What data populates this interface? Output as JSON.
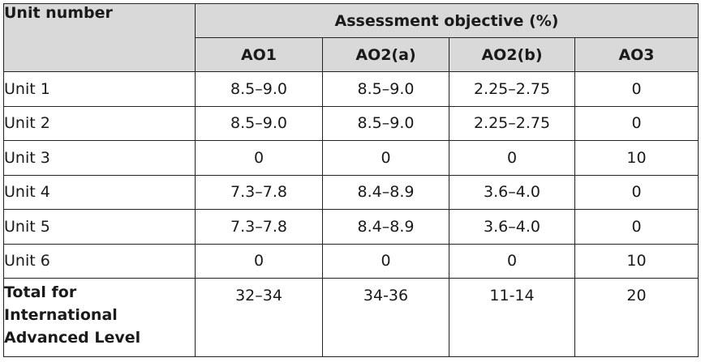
{
  "header": {
    "unit_col": "Unit number",
    "group": "Assessment objective (%)",
    "columns": [
      "AO1",
      "AO2(a)",
      "AO2(b)",
      "AO3"
    ]
  },
  "rows": [
    {
      "unit": "Unit 1",
      "values": [
        "8.5–9.0",
        "8.5–9.0",
        "2.25–2.75",
        "0"
      ]
    },
    {
      "unit": "Unit 2",
      "values": [
        "8.5–9.0",
        "8.5–9.0",
        "2.25–2.75",
        "0"
      ]
    },
    {
      "unit": "Unit 3",
      "values": [
        "0",
        "0",
        "0",
        "10"
      ]
    },
    {
      "unit": "Unit 4",
      "values": [
        "7.3–7.8",
        "8.4–8.9",
        "3.6–4.0",
        "0"
      ]
    },
    {
      "unit": "Unit 5",
      "values": [
        "7.3–7.8",
        "8.4–8.9",
        "3.6–4.0",
        "0"
      ]
    },
    {
      "unit": "Unit 6",
      "values": [
        "0",
        "0",
        "0",
        "10"
      ]
    }
  ],
  "total": {
    "label_lines": [
      "Total for",
      "International",
      "Advanced Level"
    ],
    "values": [
      "32–34",
      "34-36",
      "11-14",
      "20"
    ]
  }
}
